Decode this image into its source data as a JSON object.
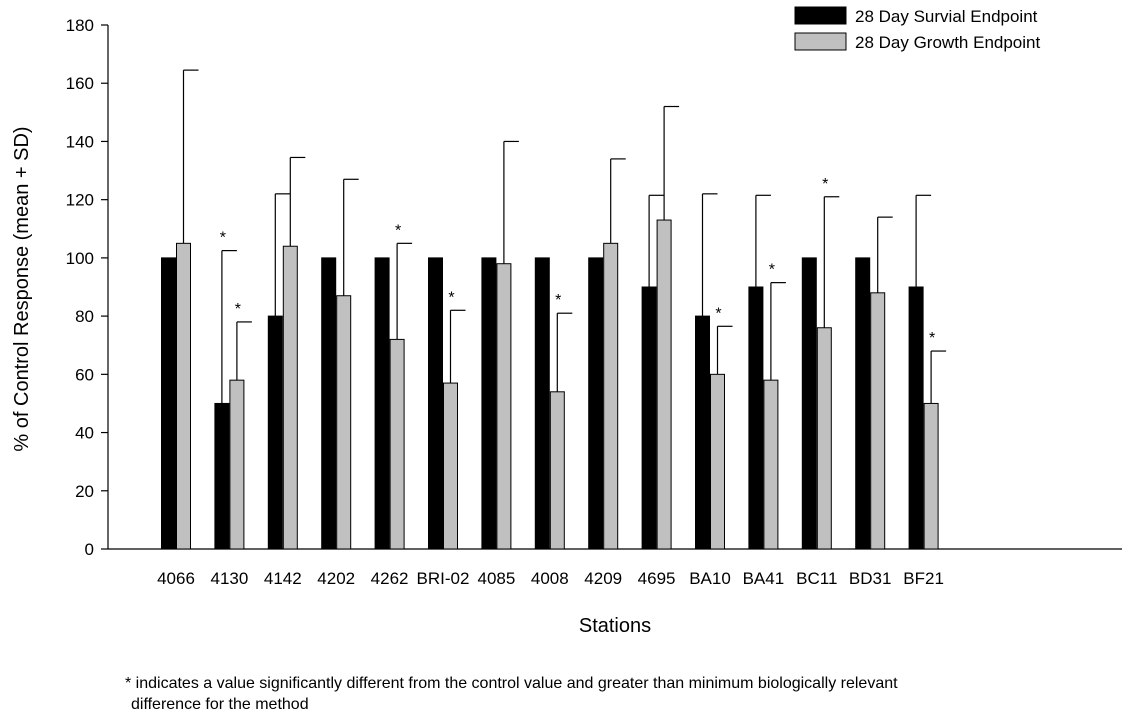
{
  "chart_data": {
    "type": "bar",
    "title": "",
    "xlabel": "Stations",
    "ylabel": "% of Control Response (mean + SD)",
    "ylim": [
      0,
      180
    ],
    "yticks": [
      "0",
      "20",
      "40",
      "60",
      "80",
      "100",
      "120",
      "140",
      "160",
      "180"
    ],
    "grid": false,
    "legend_position": "top-right",
    "categories": [
      "4066",
      "4130",
      "4142",
      "4202",
      "4262",
      "BRI-02",
      "4085",
      "4008",
      "4209",
      "4695",
      "BA10",
      "BA41",
      "BC11",
      "BD31",
      "BF21"
    ],
    "series": [
      {
        "name": "28 Day Survial Endpoint",
        "color": "#000000",
        "values": [
          100,
          50,
          80,
          100,
          100,
          100,
          100,
          100,
          100,
          90,
          80,
          90,
          100,
          100,
          90
        ],
        "error_top": [
          null,
          102.5,
          122,
          null,
          null,
          null,
          null,
          null,
          null,
          121.5,
          122,
          121.5,
          null,
          null,
          121.5
        ],
        "significant": [
          false,
          true,
          false,
          false,
          false,
          false,
          false,
          false,
          false,
          false,
          false,
          false,
          false,
          false,
          false
        ]
      },
      {
        "name": "28 Day Growth Endpoint",
        "color": "#c0c0c0",
        "values": [
          105,
          58,
          104,
          87,
          72,
          57,
          98,
          54,
          105,
          113,
          60,
          58,
          76,
          88,
          50
        ],
        "error_top": [
          164.5,
          78,
          134.5,
          127,
          105,
          82,
          140,
          81,
          134,
          152,
          76.5,
          91.5,
          121,
          114,
          68
        ],
        "significant": [
          false,
          true,
          false,
          false,
          true,
          true,
          false,
          true,
          false,
          false,
          true,
          true,
          true,
          false,
          true
        ]
      }
    ],
    "significance_marker": "*"
  },
  "footnote": {
    "line1": "* indicates a value significantly different from the control value and greater than minimum biologically relevant",
    "line2": "difference for the method"
  }
}
